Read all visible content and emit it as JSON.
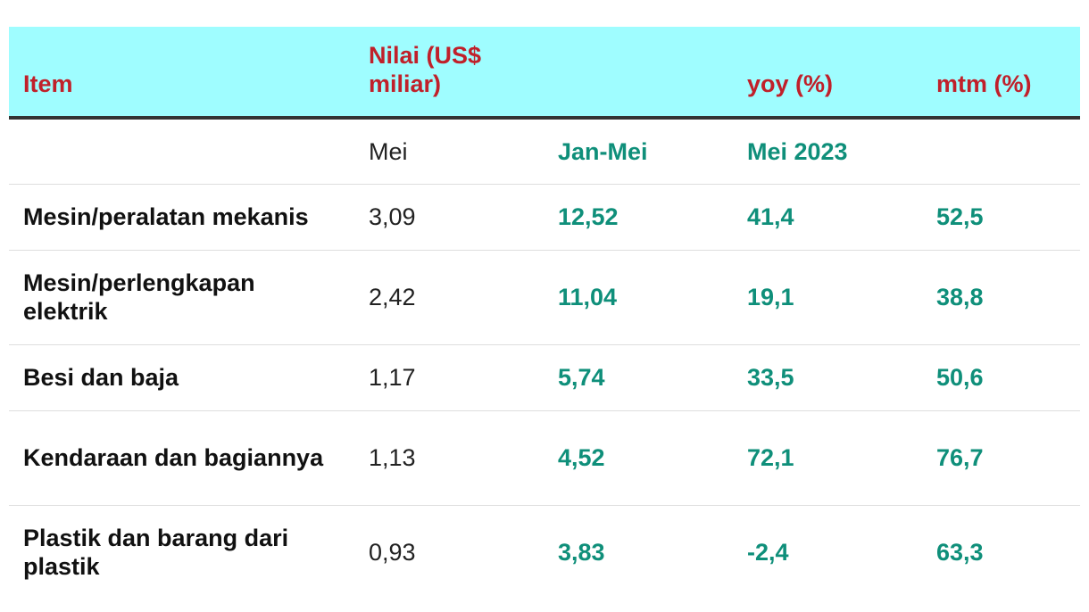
{
  "header": {
    "col_item": "Item",
    "col_value": "Nilai (US$ miliar)",
    "col_jan_mei": "",
    "col_yoy": "yoy (%)",
    "col_mtm": "mtm (%)"
  },
  "subheader": {
    "item": "",
    "mei": "Mei",
    "jan_mei": "Jan-Mei",
    "mei_2023": "Mei 2023",
    "mtm": ""
  },
  "rows": [
    {
      "item": "Mesin/peralatan mekanis",
      "mei": "3,09",
      "jan_mei": "12,52",
      "yoy": "41,4",
      "mtm": "52,5"
    },
    {
      "item": "Mesin/perlengkapan elektrik",
      "mei": "2,42",
      "jan_mei": "11,04",
      "yoy": "19,1",
      "mtm": "38,8"
    },
    {
      "item": "Besi dan baja",
      "mei": "1,17",
      "jan_mei": "5,74",
      "yoy": "33,5",
      "mtm": "50,6"
    },
    {
      "item": "Kendaraan dan bagiannya",
      "mei": "1,13",
      "jan_mei": "4,52",
      "yoy": "72,1",
      "mtm": "76,7"
    },
    {
      "item": "Plastik dan barang dari plastik",
      "mei": "0,93",
      "jan_mei": "3,83",
      "yoy": "-2,4",
      "mtm": "63,3"
    }
  ],
  "colors": {
    "header_bg": "#9ffdff",
    "header_text": "#c0202a",
    "accent_green": "#0f8f7a"
  }
}
